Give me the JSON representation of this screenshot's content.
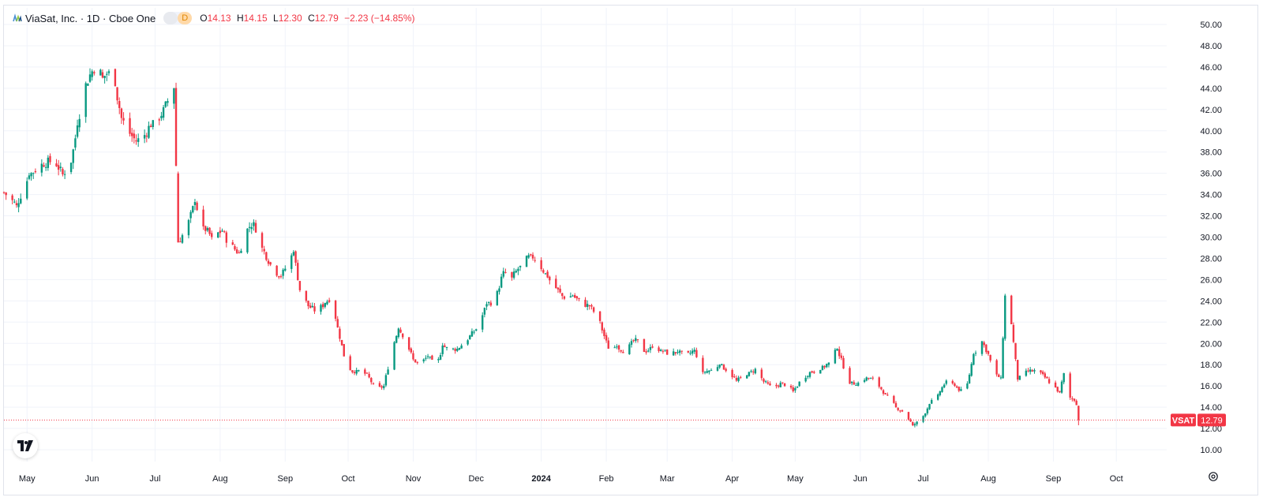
{
  "legend": {
    "symbol_title": "ViaSat, Inc. · 1D · Cboe One",
    "badge_label": "D",
    "open_label": "O",
    "open_value": "14.13",
    "high_label": "H",
    "high_value": "14.15",
    "low_label": "L",
    "low_value": "12.30",
    "close_label": "C",
    "close_value": "12.79",
    "change": "−2.23 (−14.85%)"
  },
  "price_tag": {
    "symbol": "VSAT",
    "value": "12.79"
  },
  "colors": {
    "up": "#089981",
    "down": "#f23645",
    "grid": "#f0f3fa",
    "text": "#131722"
  },
  "chart_data": {
    "type": "candlestick",
    "y_ticks": [
      "10.00",
      "12.00",
      "14.00",
      "16.00",
      "18.00",
      "20.00",
      "22.00",
      "24.00",
      "26.00",
      "28.00",
      "30.00",
      "32.00",
      "34.00",
      "36.00",
      "38.00",
      "40.00",
      "42.00",
      "44.00",
      "46.00",
      "48.00",
      "50.00"
    ],
    "ylim": [
      8.6,
      51.3
    ],
    "x_ticks": [
      {
        "label": "May",
        "date": "2023-05-01"
      },
      {
        "label": "Jun",
        "date": "2023-06-01"
      },
      {
        "label": "Jul",
        "date": "2023-07-01"
      },
      {
        "label": "Aug",
        "date": "2023-08-01"
      },
      {
        "label": "Sep",
        "date": "2023-09-01"
      },
      {
        "label": "Oct",
        "date": "2023-10-01"
      },
      {
        "label": "Nov",
        "date": "2023-11-01"
      },
      {
        "label": "Dec",
        "date": "2023-12-01"
      },
      {
        "label": "2024",
        "date": "2024-01-01",
        "bold": true
      },
      {
        "label": "Feb",
        "date": "2024-02-01"
      },
      {
        "label": "Mar",
        "date": "2024-03-01"
      },
      {
        "label": "Apr",
        "date": "2024-04-01"
      },
      {
        "label": "May",
        "date": "2024-05-01"
      },
      {
        "label": "Jun",
        "date": "2024-06-01"
      },
      {
        "label": "Jul",
        "date": "2024-07-01"
      },
      {
        "label": "Aug",
        "date": "2024-08-01"
      },
      {
        "label": "Sep",
        "date": "2024-09-01"
      },
      {
        "label": "Oct",
        "date": "2024-10-01"
      }
    ],
    "xlim": [
      "2023-04-20",
      "2024-10-25"
    ],
    "last_price": 12.79,
    "close_anchors": [
      [
        "2023-04-20",
        34.2
      ],
      [
        "2023-04-26",
        33.0
      ],
      [
        "2023-05-02",
        35.8
      ],
      [
        "2023-05-08",
        36.9
      ],
      [
        "2023-05-14",
        37.2
      ],
      [
        "2023-05-18",
        35.9
      ],
      [
        "2023-05-22",
        37.0
      ],
      [
        "2023-05-25",
        40.5
      ],
      [
        "2023-05-28",
        43.8
      ],
      [
        "2023-05-31",
        45.3
      ],
      [
        "2023-06-03",
        46.2
      ],
      [
        "2023-06-06",
        45.0
      ],
      [
        "2023-06-09",
        45.6
      ],
      [
        "2023-06-12",
        44.2
      ],
      [
        "2023-06-15",
        41.2
      ],
      [
        "2023-06-18",
        40.0
      ],
      [
        "2023-06-22",
        39.0
      ],
      [
        "2023-06-26",
        39.6
      ],
      [
        "2023-06-30",
        41.0
      ],
      [
        "2023-07-04",
        41.4
      ],
      [
        "2023-07-07",
        42.8
      ],
      [
        "2023-07-10",
        44.0
      ],
      [
        "2023-07-12",
        29.5
      ],
      [
        "2023-07-16",
        30.8
      ],
      [
        "2023-07-20",
        33.3
      ],
      [
        "2023-07-24",
        31.0
      ],
      [
        "2023-07-28",
        30.0
      ],
      [
        "2023-08-02",
        30.6
      ],
      [
        "2023-08-05",
        29.4
      ],
      [
        "2023-08-10",
        28.5
      ],
      [
        "2023-08-14",
        30.8
      ],
      [
        "2023-08-17",
        31.4
      ],
      [
        "2023-08-21",
        29.0
      ],
      [
        "2023-08-26",
        27.0
      ],
      [
        "2023-08-30",
        26.3
      ],
      [
        "2023-09-03",
        27.8
      ],
      [
        "2023-09-05",
        28.6
      ],
      [
        "2023-09-08",
        25.0
      ],
      [
        "2023-09-12",
        23.5
      ],
      [
        "2023-09-16",
        23.0
      ],
      [
        "2023-09-20",
        23.8
      ],
      [
        "2023-09-23",
        24.4
      ],
      [
        "2023-09-26",
        21.5
      ],
      [
        "2023-09-30",
        18.0
      ],
      [
        "2023-10-04",
        17.2
      ],
      [
        "2023-10-07",
        17.5
      ],
      [
        "2023-10-11",
        16.8
      ],
      [
        "2023-10-14",
        15.6
      ],
      [
        "2023-10-18",
        16.0
      ],
      [
        "2023-10-22",
        19.5
      ],
      [
        "2023-10-25",
        21.4
      ],
      [
        "2023-10-28",
        20.5
      ],
      [
        "2023-11-01",
        18.5
      ],
      [
        "2023-11-04",
        18.0
      ],
      [
        "2023-11-08",
        18.8
      ],
      [
        "2023-11-12",
        17.7
      ],
      [
        "2023-11-15",
        19.8
      ],
      [
        "2023-11-18",
        19.4
      ],
      [
        "2023-11-22",
        19.5
      ],
      [
        "2023-11-26",
        20.2
      ],
      [
        "2023-12-02",
        21.6
      ],
      [
        "2023-12-06",
        23.7
      ],
      [
        "2023-12-10",
        24.0
      ],
      [
        "2023-12-14",
        26.8
      ],
      [
        "2023-12-18",
        26.2
      ],
      [
        "2023-12-22",
        27.3
      ],
      [
        "2023-12-27",
        28.3
      ],
      [
        "2023-12-30",
        27.8
      ],
      [
        "2024-01-04",
        26.2
      ],
      [
        "2024-01-08",
        25.2
      ],
      [
        "2024-01-12",
        24.2
      ],
      [
        "2024-01-16",
        24.5
      ],
      [
        "2024-01-20",
        23.8
      ],
      [
        "2024-01-24",
        23.5
      ],
      [
        "2024-01-28",
        22.5
      ],
      [
        "2024-02-02",
        19.5
      ],
      [
        "2024-02-06",
        19.7
      ],
      [
        "2024-02-10",
        19.2
      ],
      [
        "2024-02-15",
        20.5
      ],
      [
        "2024-02-19",
        19.2
      ],
      [
        "2024-02-23",
        19.6
      ],
      [
        "2024-02-27",
        19.4
      ],
      [
        "2024-03-02",
        19.0
      ],
      [
        "2024-03-06",
        19.2
      ],
      [
        "2024-03-10",
        18.8
      ],
      [
        "2024-03-14",
        19.4
      ],
      [
        "2024-03-18",
        17.3
      ],
      [
        "2024-03-22",
        17.5
      ],
      [
        "2024-03-26",
        18.0
      ],
      [
        "2024-03-30",
        17.4
      ],
      [
        "2024-04-03",
        16.5
      ],
      [
        "2024-04-08",
        17.0
      ],
      [
        "2024-04-12",
        17.6
      ],
      [
        "2024-04-16",
        16.4
      ],
      [
        "2024-04-20",
        15.8
      ],
      [
        "2024-04-25",
        16.3
      ],
      [
        "2024-04-30",
        15.5
      ],
      [
        "2024-05-04",
        16.6
      ],
      [
        "2024-05-08",
        17.3
      ],
      [
        "2024-05-13",
        17.5
      ],
      [
        "2024-05-17",
        18.2
      ],
      [
        "2024-05-21",
        19.5
      ],
      [
        "2024-05-27",
        16.2
      ],
      [
        "2024-05-31",
        16.3
      ],
      [
        "2024-06-04",
        16.8
      ],
      [
        "2024-06-08",
        16.5
      ],
      [
        "2024-06-13",
        15.2
      ],
      [
        "2024-06-18",
        14.0
      ],
      [
        "2024-06-22",
        13.5
      ],
      [
        "2024-06-26",
        12.3
      ],
      [
        "2024-06-30",
        12.8
      ],
      [
        "2024-07-04",
        14.3
      ],
      [
        "2024-07-08",
        15.2
      ],
      [
        "2024-07-12",
        16.5
      ],
      [
        "2024-07-16",
        16.0
      ],
      [
        "2024-07-21",
        15.2
      ],
      [
        "2024-07-25",
        19.0
      ],
      [
        "2024-07-29",
        20.2
      ],
      [
        "2024-08-01",
        19.0
      ],
      [
        "2024-08-04",
        17.0
      ],
      [
        "2024-08-07",
        16.8
      ],
      [
        "2024-08-08",
        20.5
      ],
      [
        "2024-08-09",
        24.5
      ],
      [
        "2024-08-12",
        21.8
      ],
      [
        "2024-08-15",
        16.6
      ],
      [
        "2024-08-20",
        17.4
      ],
      [
        "2024-08-24",
        17.4
      ],
      [
        "2024-08-28",
        16.8
      ],
      [
        "2024-09-01",
        16.0
      ],
      [
        "2024-09-04",
        15.4
      ],
      [
        "2024-09-06",
        17.2
      ],
      [
        "2024-09-09",
        14.9
      ],
      [
        "2024-09-11",
        14.6
      ],
      [
        "2024-09-13",
        14.13
      ],
      [
        "2024-09-14",
        12.79
      ]
    ]
  }
}
